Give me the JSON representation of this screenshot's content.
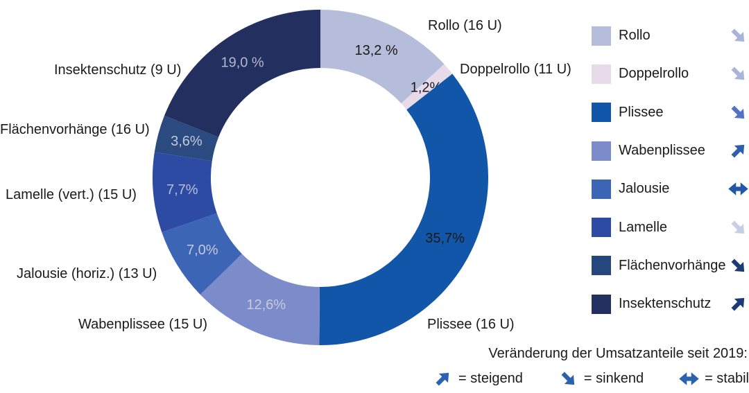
{
  "chart_data": {
    "type": "donut",
    "title": "",
    "direction": "clockwise",
    "start_angle_deg": 0,
    "inner_radius_ratio": 0.65,
    "legend_position": "right",
    "segments": [
      {
        "name": "Rollo",
        "outer_label": "Rollo (16 U)",
        "value": 13.2,
        "value_label": "13,2 %",
        "color": "#b6bddb",
        "value_label_color": "#1a1a1a"
      },
      {
        "name": "Doppelrollo",
        "outer_label": "Doppelrollo (11 U)",
        "value": 1.2,
        "value_label": "1,2%",
        "color": "#e7dbe9",
        "value_label_color": "#1a1a1a"
      },
      {
        "name": "Plissee",
        "outer_label": "Plissee (16 U)",
        "value": 35.7,
        "value_label": "35,7%",
        "color": "#1156a8",
        "value_label_color": "#1a1a1a"
      },
      {
        "name": "Wabenplissee",
        "outer_label": "Wabenplissee (15 U)",
        "value": 12.6,
        "value_label": "12,6%",
        "color": "#7c8bc9",
        "value_label_color": "#c7cbdd"
      },
      {
        "name": "Jalousie",
        "outer_label": "Jalousie (horiz.) (13 U)",
        "value": 7.0,
        "value_label": "7,0%",
        "color": "#3d65b5",
        "value_label_color": "#c3cadc"
      },
      {
        "name": "Lamelle",
        "outer_label": "Lamelle (vert.) (15 U)",
        "value": 7.7,
        "value_label": "7,7%",
        "color": "#2d4ba3",
        "value_label_color": "#b7bed8"
      },
      {
        "name": "Flächenvorhänge",
        "outer_label": "Flächenvorhänge (16 U)",
        "value": 3.6,
        "value_label": "3,6%",
        "color": "#2a4a80",
        "value_label_color": "#c3c9da"
      },
      {
        "name": "Insektenschutz",
        "outer_label": "Insektenschutz (9 U)",
        "value": 19.0,
        "value_label": "19,0 %",
        "color": "#232f5e",
        "value_label_color": "#b2b8cf"
      }
    ]
  },
  "legend": {
    "items": [
      {
        "label": "Rollo",
        "color": "#b6bddb",
        "trend": "sinkend",
        "icon": "#arrow-se",
        "arrow_color": "#a9b4da"
      },
      {
        "label": "Doppelrollo",
        "color": "#e7dbe9",
        "trend": "sinkend",
        "icon": "#arrow-se",
        "arrow_color": "#a9b4da"
      },
      {
        "label": "Plissee",
        "color": "#1156a8",
        "trend": "sinkend",
        "icon": "#arrow-se",
        "arrow_color": "#5372c4"
      },
      {
        "label": "Wabenplissee",
        "color": "#7c8bc9",
        "trend": "steigend",
        "icon": "#arrow-ne",
        "arrow_color": "#2d5fad"
      },
      {
        "label": "Jalousie",
        "color": "#3d65b5",
        "trend": "stabil",
        "icon": "#arrow-we",
        "arrow_color": "#2156a8"
      },
      {
        "label": "Lamelle",
        "color": "#2d4ba3",
        "trend": "sinkend",
        "icon": "#arrow-se",
        "arrow_color": "#c7cfe6"
      },
      {
        "label": "Flächenvorhänge",
        "color": "#26477e",
        "trend": "sinkend",
        "icon": "#arrow-se",
        "arrow_color": "#1c3a74"
      },
      {
        "label": "Insektenschutz",
        "color": "#232f5e",
        "trend": "steigend",
        "icon": "#arrow-ne",
        "arrow_color": "#1c3a74"
      }
    ]
  },
  "note": {
    "title": "Veränderung der Umsatzanteile seit 2019:",
    "arrow_color": "#2b62ae",
    "items": [
      {
        "icon": "#arrow-ne",
        "text": "= steigend"
      },
      {
        "icon": "#arrow-se",
        "text": "= sinkend"
      },
      {
        "icon": "#arrow-we",
        "text": "= stabil"
      }
    ]
  }
}
